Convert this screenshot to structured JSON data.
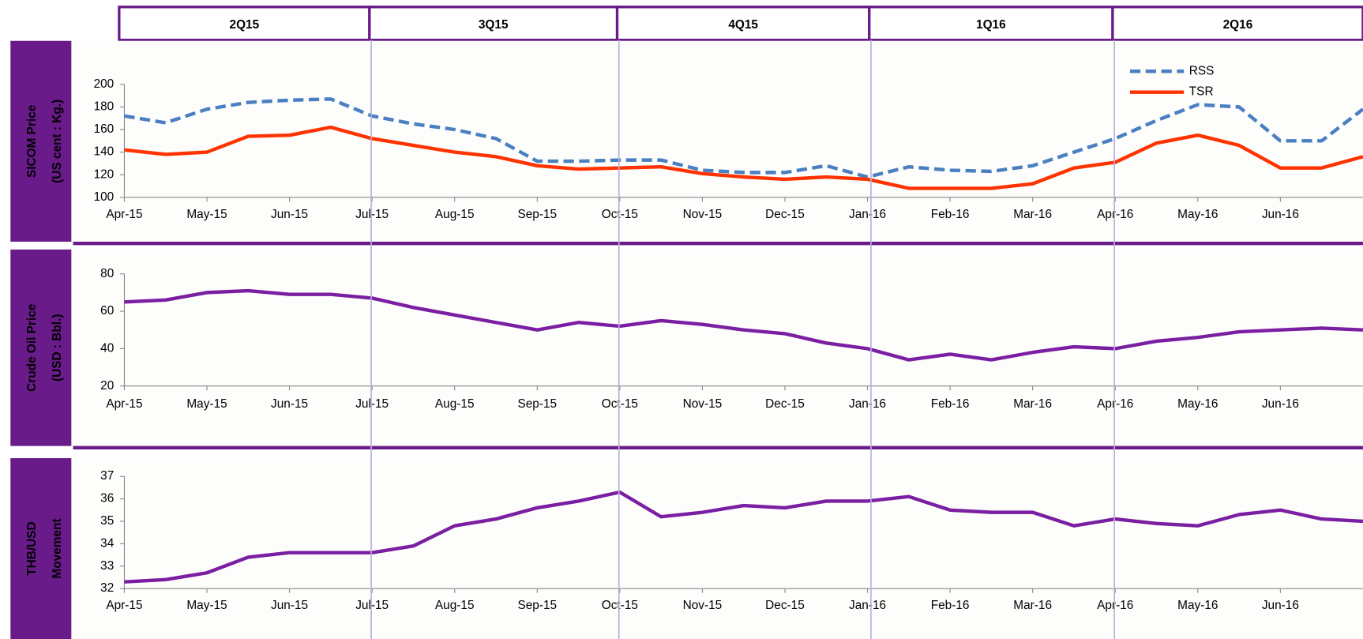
{
  "quarters": [
    "2Q15",
    "3Q15",
    "4Q15",
    "1Q16",
    "2Q16"
  ],
  "chart_data": [
    {
      "type": "line",
      "ylabel": "SICOM Price",
      "yunit": "(US cent : Kg.)",
      "categories": [
        "Apr-15",
        null,
        "May-15",
        null,
        "Jun-15",
        null,
        "Jul-15",
        null,
        "Aug-15",
        null,
        "Sep-15",
        null,
        "Oct-15",
        null,
        "Nov-15",
        null,
        "Dec-15",
        null,
        "Jan-16",
        null,
        "Feb-16",
        null,
        "Mar-16",
        null,
        "Apr-16",
        null,
        "May-16",
        null,
        "Jun-16",
        null,
        null
      ],
      "ylim": [
        100,
        200
      ],
      "yticks": [
        100,
        120,
        140,
        160,
        180,
        200
      ],
      "legend": "upper right",
      "series": [
        {
          "name": "RSS",
          "color": "#4a7fc1",
          "style": "dashed",
          "values": [
            172,
            166,
            178,
            184,
            186,
            187,
            172,
            165,
            160,
            152,
            132,
            132,
            133,
            133,
            124,
            122,
            122,
            128,
            118,
            127,
            124,
            123,
            128,
            140,
            152,
            168,
            182,
            180,
            150,
            150,
            178
          ]
        },
        {
          "name": "TSR",
          "color": "#ff3300",
          "style": "solid",
          "values": [
            142,
            138,
            140,
            154,
            155,
            162,
            152,
            146,
            140,
            136,
            128,
            125,
            126,
            127,
            121,
            118,
            116,
            118,
            116,
            108,
            108,
            108,
            112,
            126,
            131,
            148,
            155,
            146,
            126,
            126,
            136
          ]
        }
      ]
    },
    {
      "type": "line",
      "ylabel": "Crude Oil Price",
      "yunit": "(USD : Bbl.)",
      "categories": [
        "Apr-15",
        null,
        "May-15",
        null,
        "Jun-15",
        null,
        "Jul-15",
        null,
        "Aug-15",
        null,
        "Sep-15",
        null,
        "Oct-15",
        null,
        "Nov-15",
        null,
        "Dec-15",
        null,
        "Jan-16",
        null,
        "Feb-16",
        null,
        "Mar-16",
        null,
        "Apr-16",
        null,
        "May-16",
        null,
        "Jun-16",
        null,
        null
      ],
      "ylim": [
        20,
        80
      ],
      "yticks": [
        20,
        40,
        60,
        80
      ],
      "series": [
        {
          "color": "#7b1fa2",
          "style": "solid",
          "values": [
            65,
            66,
            70,
            71,
            69,
            69,
            67,
            62,
            58,
            54,
            50,
            54,
            52,
            55,
            53,
            50,
            48,
            43,
            40,
            34,
            37,
            34,
            38,
            41,
            40,
            44,
            46,
            49,
            50,
            51,
            50
          ]
        }
      ]
    },
    {
      "type": "line",
      "ylabel": "THB/USD",
      "yunit": "Movement",
      "categories": [
        "Apr-15",
        null,
        "May-15",
        null,
        "Jun-15",
        null,
        "Jul-15",
        null,
        "Aug-15",
        null,
        "Sep-15",
        null,
        "Oct-15",
        null,
        "Nov-15",
        null,
        "Dec-15",
        null,
        "Jan-16",
        null,
        "Feb-16",
        null,
        "Mar-16",
        null,
        "Apr-16",
        null,
        "May-16",
        null,
        "Jun-16",
        null,
        null
      ],
      "ylim": [
        32,
        37
      ],
      "yticks": [
        32,
        33,
        34,
        35,
        36,
        37
      ],
      "series": [
        {
          "color": "#7b1fa2",
          "style": "solid",
          "values": [
            32.3,
            32.4,
            32.7,
            33.4,
            33.6,
            33.6,
            33.6,
            33.9,
            34.8,
            35.1,
            35.6,
            35.9,
            36.3,
            35.2,
            35.4,
            35.7,
            35.6,
            35.9,
            35.9,
            36.1,
            35.5,
            35.4,
            35.4,
            34.8,
            35.1,
            34.9,
            34.8,
            35.3,
            35.5,
            35.1,
            35.0
          ]
        }
      ]
    }
  ]
}
